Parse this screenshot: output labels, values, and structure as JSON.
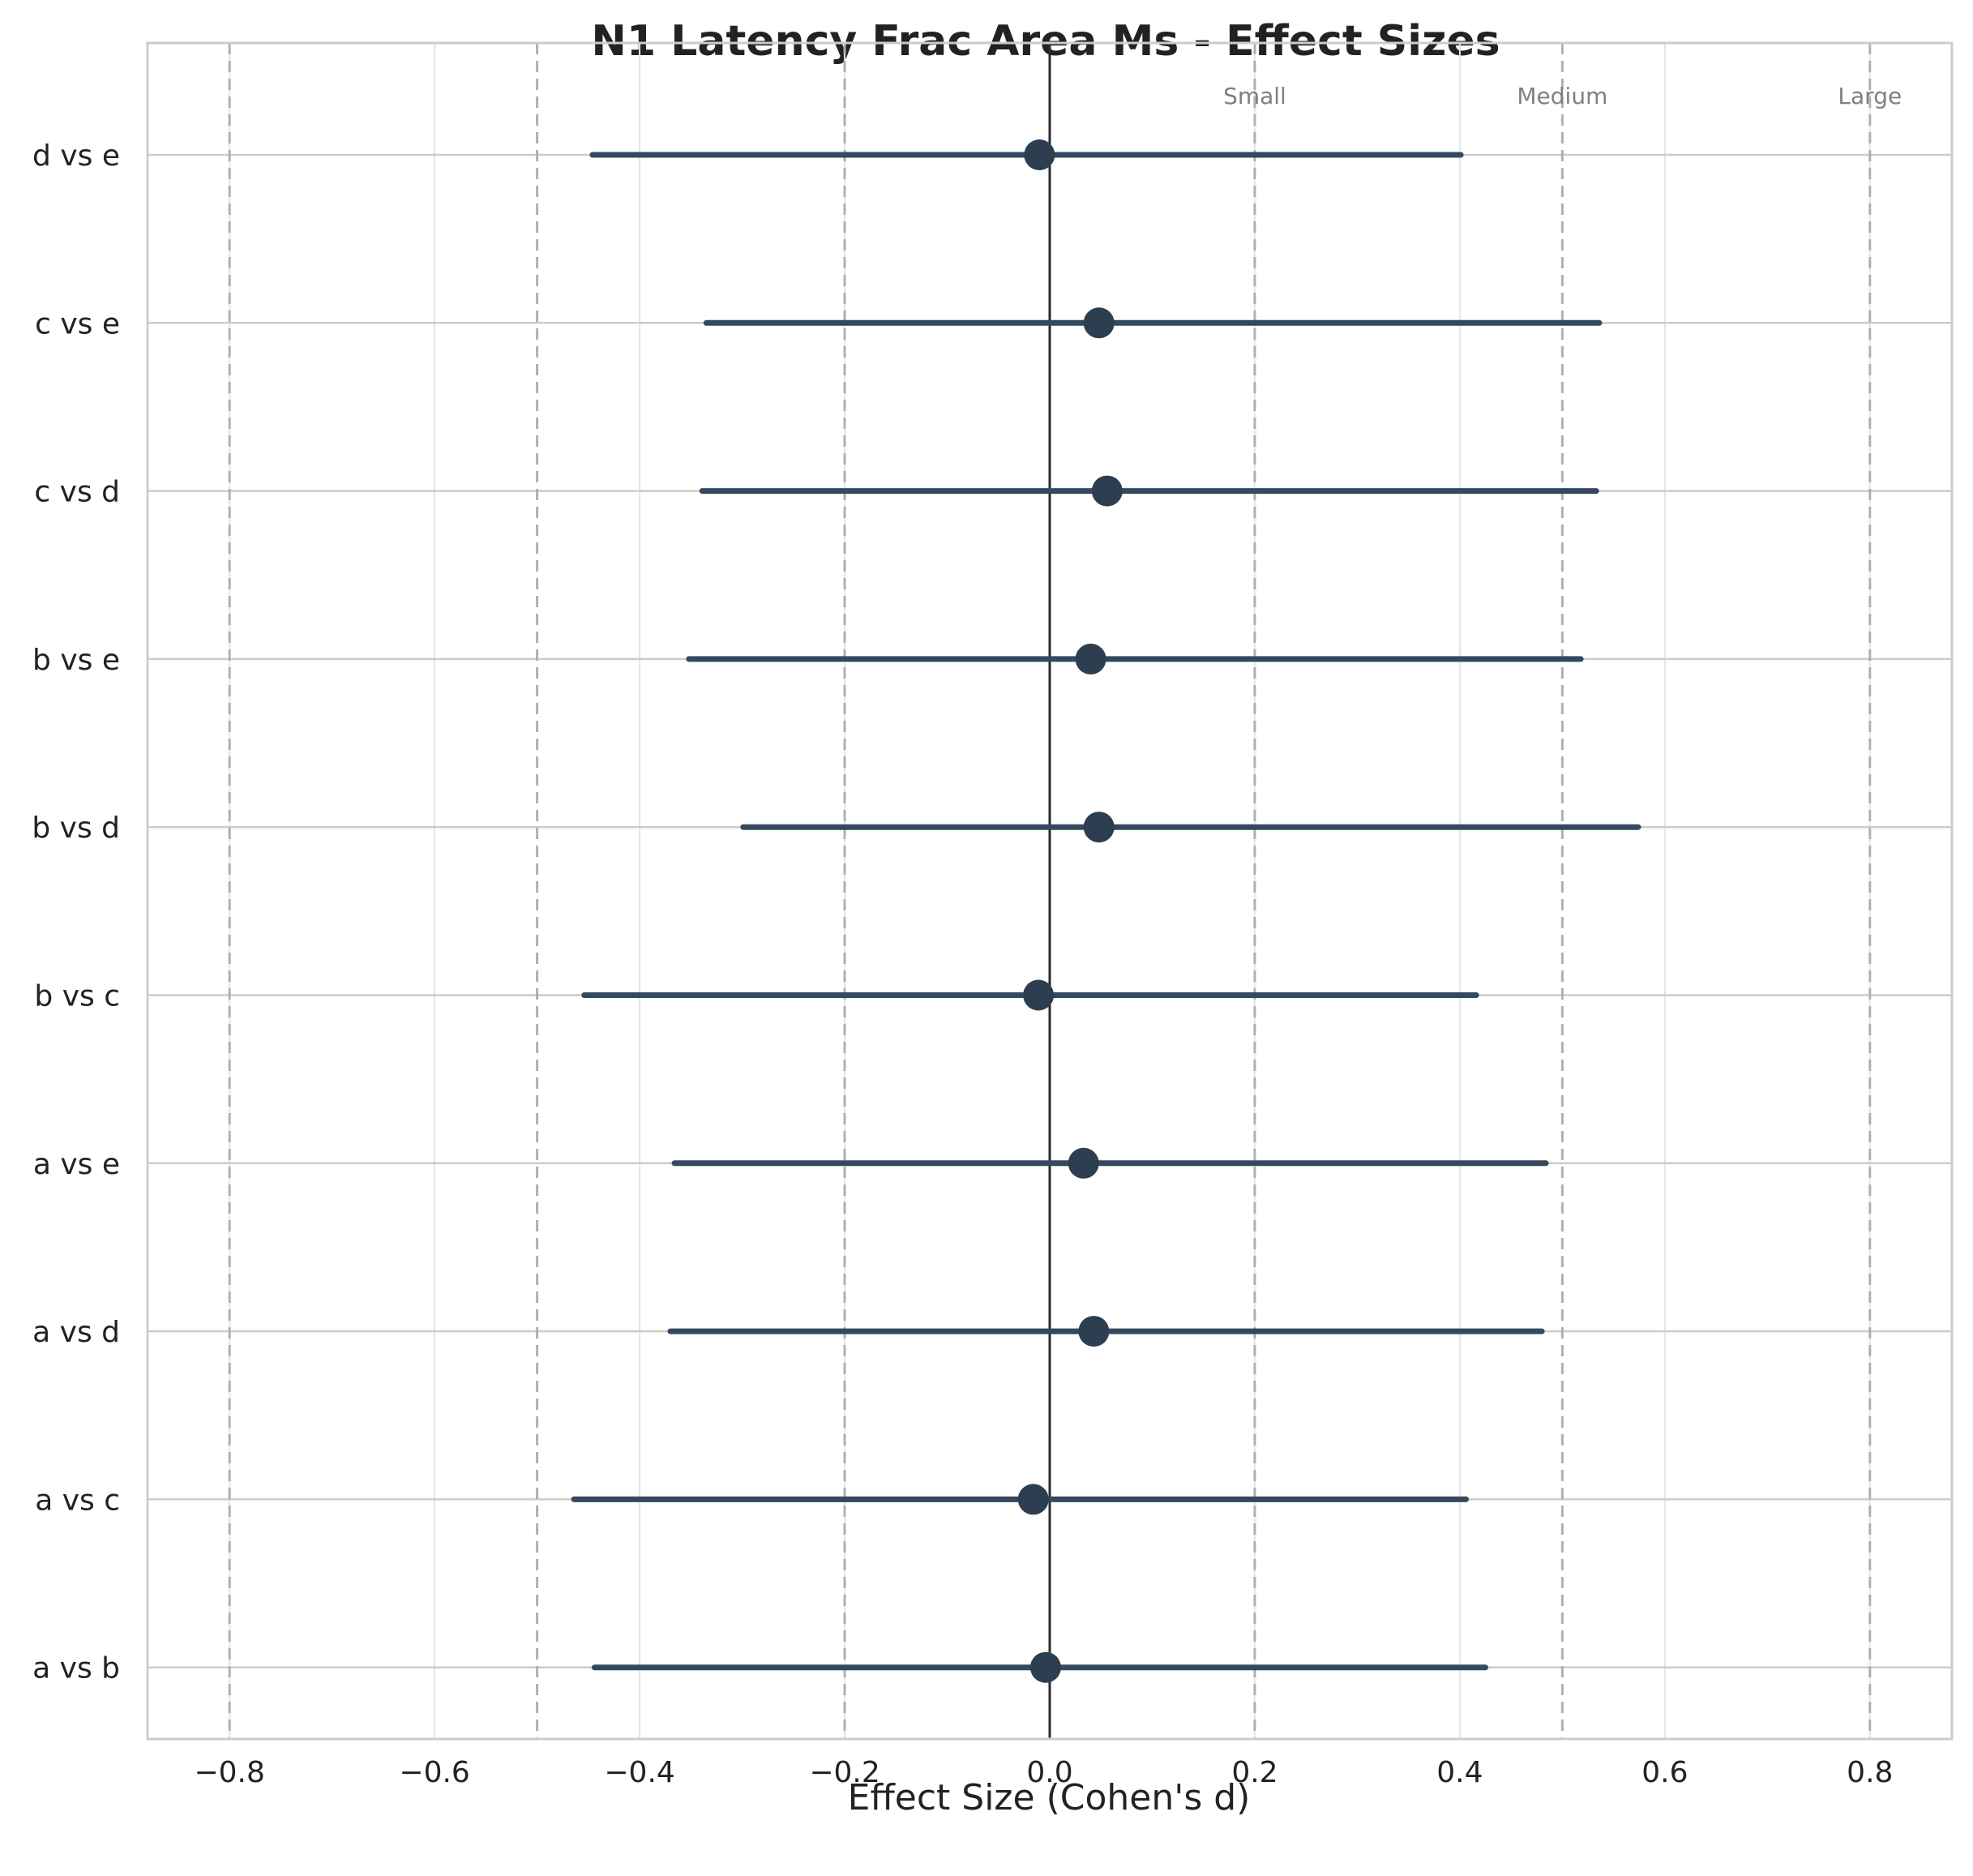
{
  "chart_data": {
    "type": "scatter",
    "subtype": "forest-plot",
    "title": "N1 Latency Frac Area Ms - Effect Sizes",
    "xlabel": "Effect Size (Cohen's d)",
    "ylabel": "",
    "xlim": [
      -0.88,
      0.88
    ],
    "grid": true,
    "xticks": [
      -0.8,
      -0.6,
      -0.4,
      -0.2,
      0.0,
      0.2,
      0.4,
      0.6,
      0.8
    ],
    "xtick_labels": [
      "−0.8",
      "−0.6",
      "−0.4",
      "−0.2",
      "0.0",
      "0.2",
      "0.4",
      "0.6",
      "0.8"
    ],
    "categories": [
      "a vs b",
      "a vs c",
      "a vs d",
      "a vs e",
      "b vs c",
      "b vs d",
      "b vs e",
      "c vs d",
      "c vs e",
      "d vs e"
    ],
    "series": [
      {
        "estimate": [
          -0.004,
          -0.016,
          0.043,
          0.033,
          -0.011,
          0.048,
          0.04,
          0.056,
          0.048,
          -0.01
        ],
        "ci_low": [
          -0.444,
          -0.464,
          -0.37,
          -0.366,
          -0.454,
          -0.299,
          -0.352,
          -0.339,
          -0.335,
          -0.446
        ],
        "ci_high": [
          0.425,
          0.406,
          0.48,
          0.484,
          0.416,
          0.574,
          0.518,
          0.533,
          0.536,
          0.401
        ]
      }
    ],
    "reference_lines": {
      "zero": 0.0,
      "thresholds": [
        -0.8,
        -0.5,
        -0.2,
        0.2,
        0.5,
        0.8
      ],
      "threshold_labels": [
        {
          "value": 0.2,
          "text": "Small"
        },
        {
          "value": 0.5,
          "text": "Medium"
        },
        {
          "value": 0.8,
          "text": "Large"
        }
      ]
    },
    "colors": {
      "marker": "#2c3e50",
      "ci_line": "#34495e",
      "zero_line": "#2b2b2b",
      "threshold_line": "#b0b0b0",
      "grid": "#e5e5e5",
      "spine": "#cccccc"
    }
  }
}
